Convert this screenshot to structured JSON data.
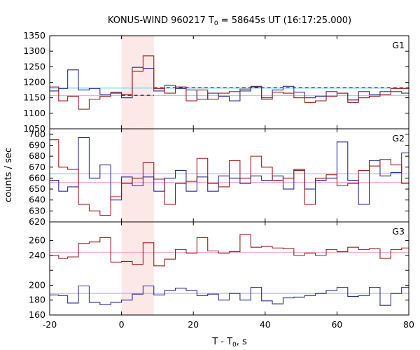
{
  "chart_data": {
    "type": "line",
    "title_main": "KONUS-WIND 960217 T",
    "title_sub": "0",
    "title_rest": " = 58645s UT (16:17:25.000)",
    "xlabel_main": "T - T",
    "xlabel_sub": "0",
    "xlabel_rest": ", s",
    "ylabel": "counts / sec",
    "xlim": [
      -20,
      80
    ],
    "xticks": [
      "-20",
      "0",
      "20",
      "40",
      "60",
      "80"
    ],
    "highlight_interval": [
      0,
      9.0
    ],
    "highlight_color": "#fde8e8",
    "colors": {
      "red_series": "#9b1b1b",
      "blue_series": "#2b2b9b",
      "red_background": "#f4a0c8",
      "blue_background": "#66ccee",
      "red_burst_fit": "#f4a0c8",
      "blue_burst_fit": "#66ccee",
      "red_dashed": "#9b1b1b",
      "black_dashed": "#000000"
    },
    "panels": [
      {
        "label": "G1",
        "ylim": [
          1050,
          1350
        ],
        "yticks": [
          1050,
          1100,
          1150,
          1200,
          1250,
          1300,
          1350
        ],
        "ytick_labels": [
          "1050",
          "1100",
          "1150",
          "1200",
          "1250",
          "1300",
          "1350"
        ],
        "series": [
          {
            "color_key": "blue_series",
            "x": [
              -20,
              -17.5,
              -15,
              -12,
              -9,
              -6,
              -3,
              0,
              3,
              6,
              9,
              12,
              15,
              18,
              21,
              24,
              27,
              30,
              33,
              36,
              39,
              42,
              45,
              48,
              51,
              54,
              57,
              60,
              63,
              66,
              69,
              72,
              75,
              78,
              80
            ],
            "y": [
              1172,
              1180,
              1240,
              1175,
              1180,
              1160,
              1165,
              1150,
              1248,
              1245,
              1172,
              1190,
              1180,
              1175,
              1145,
              1165,
              1155,
              1140,
              1172,
              1187,
              1145,
              1175,
              1187,
              1168,
              1150,
              1155,
              1170,
              1165,
              1143,
              1170,
              1160,
              1170,
              1170,
              1165,
              1165
            ]
          },
          {
            "color_key": "red_series",
            "x": [
              -20,
              -17.5,
              -15,
              -12,
              -9,
              -6,
              -3,
              0,
              3,
              6,
              9,
              12,
              15,
              18,
              21,
              24,
              27,
              30,
              33,
              36,
              39,
              42,
              45,
              48,
              51,
              54,
              57,
              60,
              63,
              66,
              69,
              72,
              75,
              78,
              80
            ],
            "y": [
              1185,
              1140,
              1155,
              1113,
              1145,
              1155,
              1168,
              1160,
              1235,
              1285,
              1180,
              1165,
              1185,
              1140,
              1175,
              1145,
              1165,
              1170,
              1178,
              1185,
              1150,
              1168,
              1165,
              1150,
              1135,
              1140,
              1155,
              1165,
              1135,
              1150,
              1155,
              1160,
              1180,
              1180,
              1180
            ]
          }
        ],
        "background_lines": [
          {
            "color_key": "blue_background",
            "y": 1181
          },
          {
            "color_key": "red_background",
            "y": 1157
          }
        ],
        "dashed_lines": [
          {
            "color_key": "black_dashed",
            "x": [
              0,
              9
            ],
            "y": 1158
          },
          {
            "color_key": "black_dashed",
            "x": [
              9,
              80
            ],
            "y": 1182
          }
        ]
      },
      {
        "label": "G2",
        "ylim": [
          620,
          705
        ],
        "yticks": [
          620,
          630,
          640,
          650,
          660,
          670,
          680,
          690,
          700
        ],
        "ytick_labels": [
          "620",
          "630",
          "640",
          "650",
          "660",
          "670",
          "680",
          "690",
          "700"
        ],
        "series": [
          {
            "color_key": "blue_series",
            "x": [
              -20,
              -17.5,
              -15,
              -12,
              -9,
              -6,
              -3,
              0,
              3,
              6,
              9,
              12,
              15,
              18,
              21,
              24,
              27,
              30,
              33,
              36,
              39,
              42,
              45,
              48,
              51,
              54,
              57,
              60,
              63,
              66,
              69,
              72,
              75,
              78,
              80
            ],
            "y": [
              658,
              648,
              652,
              697,
              660,
              672,
              640,
              661,
              653,
              661,
              648,
              660,
              667,
              648,
              661,
              648,
              662,
              660,
              655,
              662,
              658,
              662,
              650,
              668,
              650,
              658,
              660,
              693,
              658,
              636,
              676,
              662,
              665,
              683,
              683
            ]
          },
          {
            "color_key": "red_series",
            "x": [
              -20,
              -17.5,
              -15,
              -12,
              -9,
              -6,
              -3,
              0,
              3,
              6,
              9,
              12,
              15,
              18,
              21,
              24,
              27,
              30,
              33,
              36,
              39,
              42,
              45,
              48,
              51,
              54,
              57,
              60,
              63,
              66,
              69,
              72,
              75,
              78,
              80
            ],
            "y": [
              695,
              670,
              668,
              636,
              630,
              626,
              643,
              655,
              660,
              674,
              659,
              636,
              655,
              657,
              678,
              655,
              652,
              676,
              660,
              680,
              670,
              658,
              660,
              667,
              636,
              660,
              663,
              653,
              655,
              667,
              671,
              677,
              672,
              655,
              655
            ]
          }
        ],
        "background_lines": [
          {
            "color_key": "blue_background",
            "y": 664
          },
          {
            "color_key": "red_background",
            "y": 656
          }
        ],
        "dashed_lines": []
      },
      {
        "label": "G3",
        "ylim": [
          160,
          285
        ],
        "yticks": [
          160,
          180,
          200,
          220,
          240,
          260
        ],
        "ytick_labels": [
          "160",
          "180",
          "200",
          "",
          "240",
          "260"
        ],
        "series": [
          {
            "color_key": "red_series",
            "x": [
              -20,
              -17.5,
              -15,
              -12,
              -9,
              -6,
              -3,
              0,
              3,
              6,
              9,
              12,
              15,
              18,
              21,
              24,
              27,
              30,
              33,
              36,
              39,
              42,
              45,
              48,
              51,
              54,
              57,
              60,
              63,
              66,
              69,
              72,
              75,
              78,
              80
            ],
            "y": [
              240,
              236,
              238,
              256,
              258,
              264,
              231,
              232,
              228,
              257,
              226,
              235,
              248,
              243,
              264,
              246,
              243,
              245,
              268,
              251,
              252,
              250,
              249,
              240,
              243,
              240,
              248,
              245,
              251,
              248,
              249,
              236,
              248,
              250,
              250
            ]
          },
          {
            "color_key": "blue_series",
            "x": [
              -20,
              -17.5,
              -15,
              -12,
              -9,
              -6,
              -3,
              0,
              3,
              6,
              9,
              12,
              15,
              18,
              21,
              24,
              27,
              30,
              33,
              36,
              39,
              42,
              45,
              48,
              51,
              54,
              57,
              60,
              63,
              66,
              69,
              72,
              75,
              78,
              80
            ],
            "y": [
              187,
              186,
              176,
              199,
              177,
              174,
              177,
              180,
              188,
              199,
              187,
              193,
              196,
              193,
              186,
              188,
              180,
              189,
              180,
              197,
              179,
              175,
              183,
              184,
              186,
              189,
              193,
              197,
              185,
              186,
              197,
              173,
              189,
              197,
              197
            ]
          }
        ],
        "background_lines": [
          {
            "color_key": "red_background",
            "y": 244
          },
          {
            "color_key": "blue_background",
            "y": 189
          }
        ],
        "dashed_lines": []
      }
    ]
  }
}
